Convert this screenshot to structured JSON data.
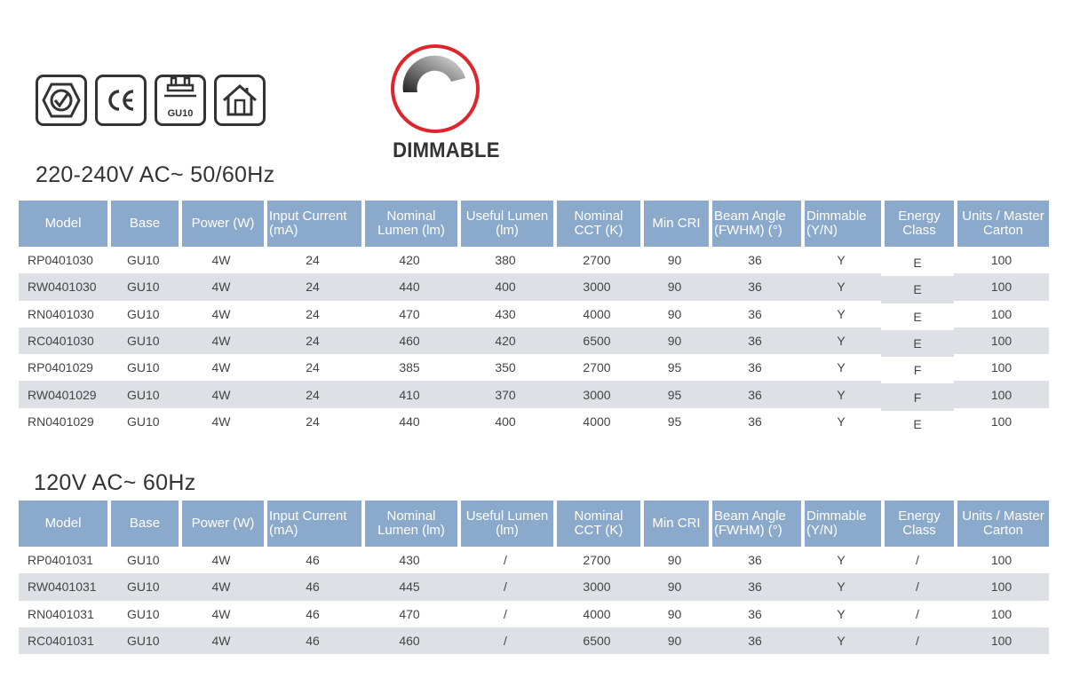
{
  "badges": {
    "certs": [
      "rcm-mark",
      "ce-mark",
      "gu10-base",
      "indoor-use"
    ],
    "gu10_label": "GU10",
    "dimmable_label": "DIMMABLE"
  },
  "section1": {
    "title": "220-240V AC~ 50/60Hz",
    "headers": [
      "Model",
      "Base",
      "Power (W)",
      "Input Current (mA)",
      "Nominal Lumen (lm)",
      "Useful Lumen (lm)",
      "Nominal CCT (K)",
      "Min CRI",
      "Beam Angle (FWHM) (°)",
      "Dimmable (Y/N)",
      "Energy Class",
      "Units / Master Carton"
    ],
    "rows": [
      [
        "RP0401030",
        "GU10",
        "4W",
        "24",
        "420",
        "380",
        "2700",
        "90",
        "36",
        "Y",
        "E",
        "100"
      ],
      [
        "RW0401030",
        "GU10",
        "4W",
        "24",
        "440",
        "400",
        "3000",
        "90",
        "36",
        "Y",
        "E",
        "100"
      ],
      [
        "RN0401030",
        "GU10",
        "4W",
        "24",
        "470",
        "430",
        "4000",
        "90",
        "36",
        "Y",
        "E",
        "100"
      ],
      [
        "RC0401030",
        "GU10",
        "4W",
        "24",
        "460",
        "420",
        "6500",
        "90",
        "36",
        "Y",
        "E",
        "100"
      ],
      [
        "RP0401029",
        "GU10",
        "4W",
        "24",
        "385",
        "350",
        "2700",
        "95",
        "36",
        "Y",
        "F",
        "100"
      ],
      [
        "RW0401029",
        "GU10",
        "4W",
        "24",
        "410",
        "370",
        "3000",
        "95",
        "36",
        "Y",
        "F",
        "100"
      ],
      [
        "RN0401029",
        "GU10",
        "4W",
        "24",
        "440",
        "400",
        "4000",
        "95",
        "36",
        "Y",
        "E",
        "100"
      ]
    ]
  },
  "section2": {
    "title": "120V AC~ 60Hz",
    "headers": [
      "Model",
      "Base",
      "Power (W)",
      "Input Current (mA)",
      "Nominal Lumen (lm)",
      "Useful Lumen (lm)",
      "Nominal CCT (K)",
      "Min CRI",
      "Beam Angle (FWHM) (°)",
      "Dimmable (Y/N)",
      "Energy Class",
      "Units / Master Carton"
    ],
    "rows": [
      [
        "RP0401031",
        "GU10",
        "4W",
        "46",
        "430",
        "/",
        "2700",
        "90",
        "36",
        "Y",
        "/",
        "100"
      ],
      [
        "RW0401031",
        "GU10",
        "4W",
        "46",
        "445",
        "/",
        "3000",
        "90",
        "36",
        "Y",
        "/",
        "100"
      ],
      [
        "RN0401031",
        "GU10",
        "4W",
        "46",
        "470",
        "/",
        "4000",
        "90",
        "36",
        "Y",
        "/",
        "100"
      ],
      [
        "RC0401031",
        "GU10",
        "4W",
        "46",
        "460",
        "/",
        "6500",
        "90",
        "36",
        "Y",
        "/",
        "100"
      ]
    ]
  },
  "colors": {
    "header_bg": "#8ba9ca",
    "alt_row_bg": "#dde1e6",
    "dimmable_ring": "#e0242b"
  }
}
